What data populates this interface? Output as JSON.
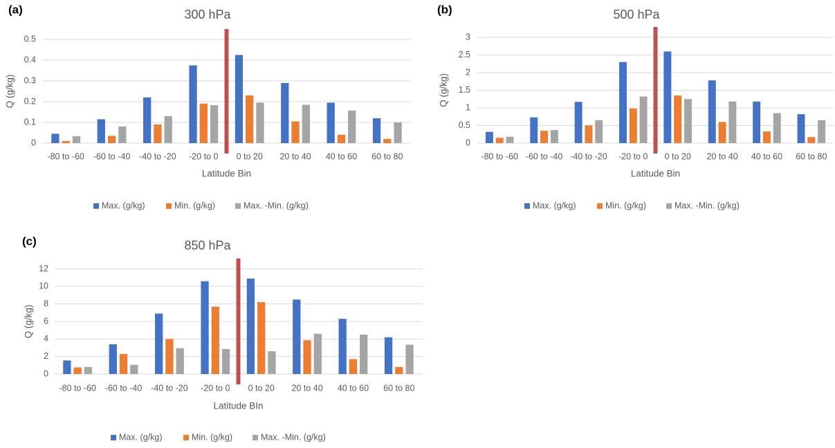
{
  "chart_data": [
    {
      "type": "bar",
      "panel": "(a)",
      "title": "300 hPa",
      "xlabel": "Latitude Bin",
      "ylabel": "Q (g/kg)",
      "categories": [
        "-80 to -60",
        "-60 to -40",
        "-40 to -20",
        "-20 to 0",
        "0 to 20",
        "20 to 40",
        "40 to 60",
        "60 to 80"
      ],
      "series": [
        {
          "name": "Max. (g/kg)",
          "color": "#4472c4",
          "values": [
            0.045,
            0.115,
            0.22,
            0.375,
            0.425,
            0.29,
            0.195,
            0.12
          ]
        },
        {
          "name": "Min. (g/kg)",
          "color": "#ed7d31",
          "values": [
            0.01,
            0.035,
            0.09,
            0.19,
            0.23,
            0.105,
            0.04,
            0.02
          ]
        },
        {
          "name": "Max. -Min. (g/kg)",
          "color": "#a5a5a5",
          "values": [
            0.033,
            0.08,
            0.13,
            0.183,
            0.195,
            0.185,
            0.157,
            0.1
          ]
        }
      ],
      "ylim": [
        0,
        0.5
      ],
      "yticks": [
        0,
        0.1,
        0.2,
        0.3,
        0.4,
        0.5
      ],
      "grid": true,
      "legend": "bottom"
    },
    {
      "type": "bar",
      "panel": "(b)",
      "title": "500 hPa",
      "xlabel": "Latitude Bin",
      "ylabel": "Q (g/kg)",
      "categories": [
        "-80 to -60",
        "-60 to -40",
        "-40 to -20",
        "-20 to 0",
        "0 to 20",
        "20 to 40",
        "40 to 60",
        "60 to 80"
      ],
      "series": [
        {
          "name": "Max. (g/kg)",
          "color": "#4472c4",
          "values": [
            0.32,
            0.73,
            1.17,
            2.3,
            2.6,
            1.78,
            1.18,
            0.82
          ]
        },
        {
          "name": "Min. (g/kg)",
          "color": "#ed7d31",
          "values": [
            0.15,
            0.35,
            0.5,
            0.98,
            1.35,
            0.6,
            0.33,
            0.17
          ]
        },
        {
          "name": "Max. -Min. (g/kg)",
          "color": "#a5a5a5",
          "values": [
            0.18,
            0.37,
            0.65,
            1.32,
            1.25,
            1.18,
            0.85,
            0.65
          ]
        }
      ],
      "ylim": [
        0,
        3
      ],
      "yticks": [
        0,
        0.5,
        1,
        1.5,
        2,
        2.5,
        3
      ],
      "grid": true,
      "legend": "bottom"
    },
    {
      "type": "bar",
      "panel": "(c)",
      "title": "850 hPa",
      "xlabel": "Latitude BIn",
      "ylabel": "Q (g/kg)",
      "categories": [
        "-80 to -60",
        "-60 to -40",
        "-40 to -20",
        "-20 to 0",
        "0 to 20",
        "20 to 40",
        "40 to 60",
        "60 to 80"
      ],
      "series": [
        {
          "name": "Max. (g/kg)",
          "color": "#4472c4",
          "values": [
            1.55,
            3.4,
            6.9,
            10.6,
            10.9,
            8.5,
            6.3,
            4.2
          ]
        },
        {
          "name": "Min. (g/kg)",
          "color": "#ed7d31",
          "values": [
            0.75,
            2.3,
            4.0,
            7.7,
            8.2,
            3.85,
            1.7,
            0.8
          ]
        },
        {
          "name": "Max. -Min. (g/kg)",
          "color": "#a5a5a5",
          "values": [
            0.8,
            1.05,
            2.95,
            2.85,
            2.6,
            4.6,
            4.5,
            3.35
          ]
        }
      ],
      "ylim": [
        0,
        12
      ],
      "yticks": [
        0,
        2,
        4,
        6,
        8,
        10,
        12
      ],
      "grid": true,
      "legend": "bottom"
    }
  ]
}
